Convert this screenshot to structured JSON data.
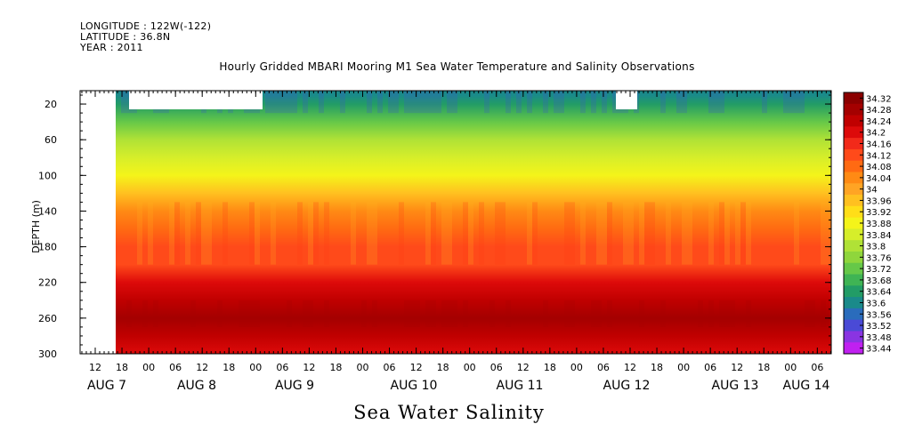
{
  "header": {
    "longitude": "LONGITUDE : 122W(-122)",
    "latitude": "LATITUDE : 36.8N",
    "year": "YEAR : 2011"
  },
  "chart_data": {
    "type": "heatmap",
    "title": "Hourly Gridded MBARI Mooring M1 Sea Water Temperature and Salinity Observations",
    "bottom_title": "Sea Water Salinity",
    "ylabel": "DEPTH (m)",
    "y_ticks": [
      20,
      60,
      100,
      140,
      180,
      220,
      260,
      300
    ],
    "ylim": [
      300,
      5
    ],
    "x_hour_ticks": [
      "12",
      "18",
      "00",
      "06",
      "12",
      "18",
      "00",
      "06",
      "12",
      "18",
      "00",
      "06",
      "12",
      "18",
      "00",
      "06",
      "12",
      "18",
      "00",
      "06",
      "12",
      "18",
      "00",
      "06",
      "12",
      "18",
      "00",
      "06"
    ],
    "x_day_labels": [
      {
        "label": "AUG  7",
        "date": "2011-08-07"
      },
      {
        "label": "AUG  8",
        "date": "2011-08-08"
      },
      {
        "label": "AUG  9",
        "date": "2011-08-09"
      },
      {
        "label": "AUG 10",
        "date": "2011-08-10"
      },
      {
        "label": "AUG 11",
        "date": "2011-08-11"
      },
      {
        "label": "AUG 12",
        "date": "2011-08-12"
      },
      {
        "label": "AUG 13",
        "date": "2011-08-13"
      },
      {
        "label": "AUG 14",
        "date": "2011-08-14"
      }
    ],
    "colorbar": {
      "levels": [
        "34.32",
        "34.28",
        "34.24",
        "34.2",
        "34.16",
        "34.12",
        "34.08",
        "34.04",
        "34",
        "33.96",
        "33.92",
        "33.88",
        "33.84",
        "33.8",
        "33.76",
        "33.72",
        "33.68",
        "33.64",
        "33.6",
        "33.56",
        "33.52",
        "33.48",
        "33.44"
      ],
      "colors": [
        "#8b0000",
        "#a40000",
        "#c00000",
        "#dd0a0a",
        "#f22a1a",
        "#ff4a1a",
        "#ff6a12",
        "#ff8a14",
        "#ffa424",
        "#ffc020",
        "#ffde18",
        "#f4f41a",
        "#d6ee2a",
        "#b0e236",
        "#8fd63c",
        "#66c848",
        "#3fb454",
        "#229c66",
        "#1a8a8a",
        "#2a6cbc",
        "#4a4ad6",
        "#8a34e2",
        "#c020f0"
      ]
    },
    "salinity_profile": [
      {
        "depth": 10,
        "value": 33.6
      },
      {
        "depth": 20,
        "value": 33.64
      },
      {
        "depth": 40,
        "value": 33.72
      },
      {
        "depth": 60,
        "value": 33.8
      },
      {
        "depth": 80,
        "value": 33.86
      },
      {
        "depth": 100,
        "value": 33.9
      },
      {
        "depth": 120,
        "value": 33.98
      },
      {
        "depth": 140,
        "value": 34.06
      },
      {
        "depth": 160,
        "value": 34.1
      },
      {
        "depth": 180,
        "value": 34.12
      },
      {
        "depth": 200,
        "value": 34.14
      },
      {
        "depth": 220,
        "value": 34.2
      },
      {
        "depth": 240,
        "value": 34.26
      },
      {
        "depth": 260,
        "value": 34.3
      },
      {
        "depth": 280,
        "value": 34.24
      },
      {
        "depth": 300,
        "value": 34.2
      }
    ]
  }
}
